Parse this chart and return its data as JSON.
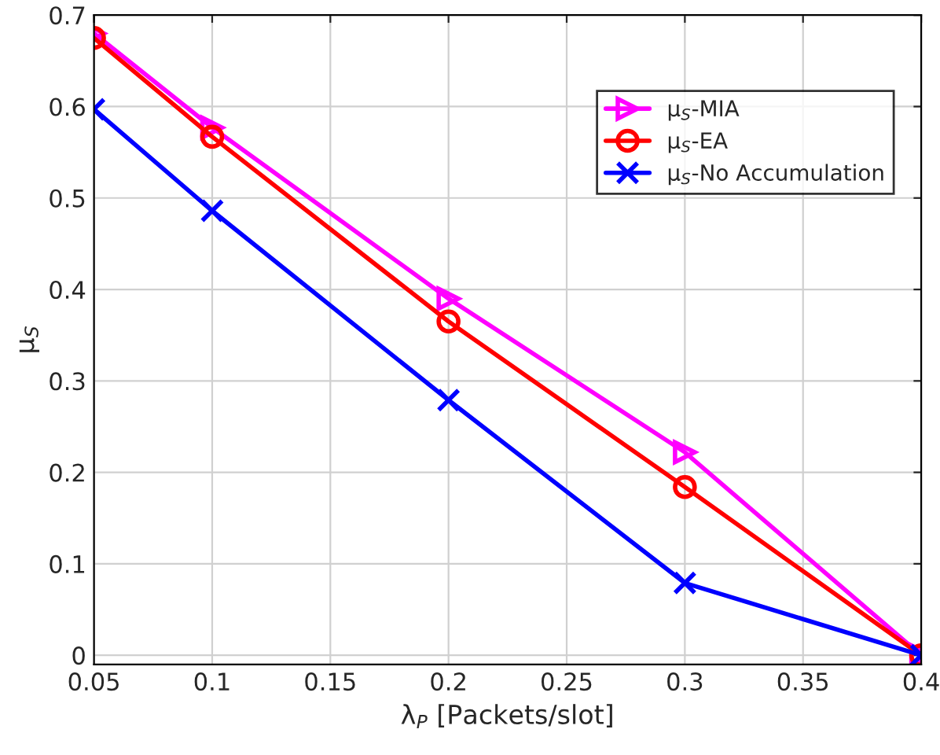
{
  "chart_data": {
    "type": "line",
    "xlabel": "λ$_{P}$ [Packets/slot]",
    "ylabel": "μ$_{S}$",
    "x": [
      0.05,
      0.1,
      0.2,
      0.3,
      0.4
    ],
    "series": [
      {
        "name": "μ$_{S}$-MIA",
        "color": "#ff00ff",
        "marker": "triangle",
        "values": [
          0.68,
          0.577,
          0.39,
          0.222,
          0
        ]
      },
      {
        "name": "μ$_{S}$-EA",
        "color": "#ff0000",
        "marker": "circle",
        "values": [
          0.675,
          0.567,
          0.365,
          0.184,
          0
        ]
      },
      {
        "name": "μ$_{S}$-No Accumulation",
        "color": "#0000ff",
        "marker": "cross",
        "values": [
          0.597,
          0.486,
          0.279,
          0.079,
          0
        ]
      }
    ],
    "xlim": [
      0.05,
      0.4
    ],
    "xticks": [
      0.05,
      0.1,
      0.15,
      0.2,
      0.25,
      0.3,
      0.35,
      0.4
    ],
    "ylim": [
      -0.01,
      0.7
    ],
    "yticks": [
      0,
      0.1,
      0.2,
      0.3,
      0.4,
      0.5,
      0.6,
      0.7
    ],
    "grid": true,
    "legend": "top right",
    "line_style": "solid"
  }
}
